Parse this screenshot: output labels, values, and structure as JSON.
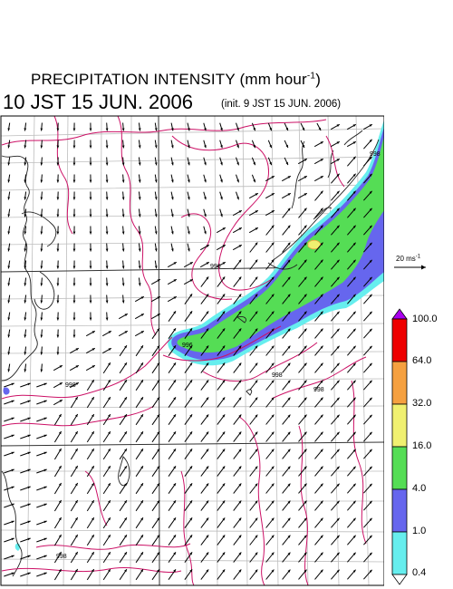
{
  "header": {
    "title_main": "PRECIPITATION INTENSITY (mm hour",
    "title_exp": "-1",
    "title_close": ")",
    "valid_time": "10 JST 15 JUN. 2006",
    "init_time": "(init. 9 JST 15 JUN. 2006)"
  },
  "reference_vector": {
    "label_main": "20 ms",
    "label_exp": "-1",
    "speed": 20
  },
  "colorbar": {
    "levels": [
      "100.0",
      "64.0",
      "32.0",
      "16.0",
      "4.0",
      "1.0",
      "0.4"
    ],
    "colors": [
      "#ee0000",
      "#f5a040",
      "#f0f070",
      "#55dd55",
      "#6666ee",
      "#66eeee"
    ],
    "over_color": "#aa00ee",
    "under_color": "#ffffff"
  },
  "map": {
    "isobar_labels": [
      "996",
      "996",
      "998",
      "998",
      "998",
      "998",
      "998"
    ],
    "colors": {
      "isobar": "#cc1166",
      "grid": "#bdbdbd",
      "coast": "#222222",
      "precip_light": "#66eeee",
      "precip_mid": "#6666ee",
      "precip_heavy": "#55dd55",
      "precip_peak": "#f0f070"
    }
  }
}
